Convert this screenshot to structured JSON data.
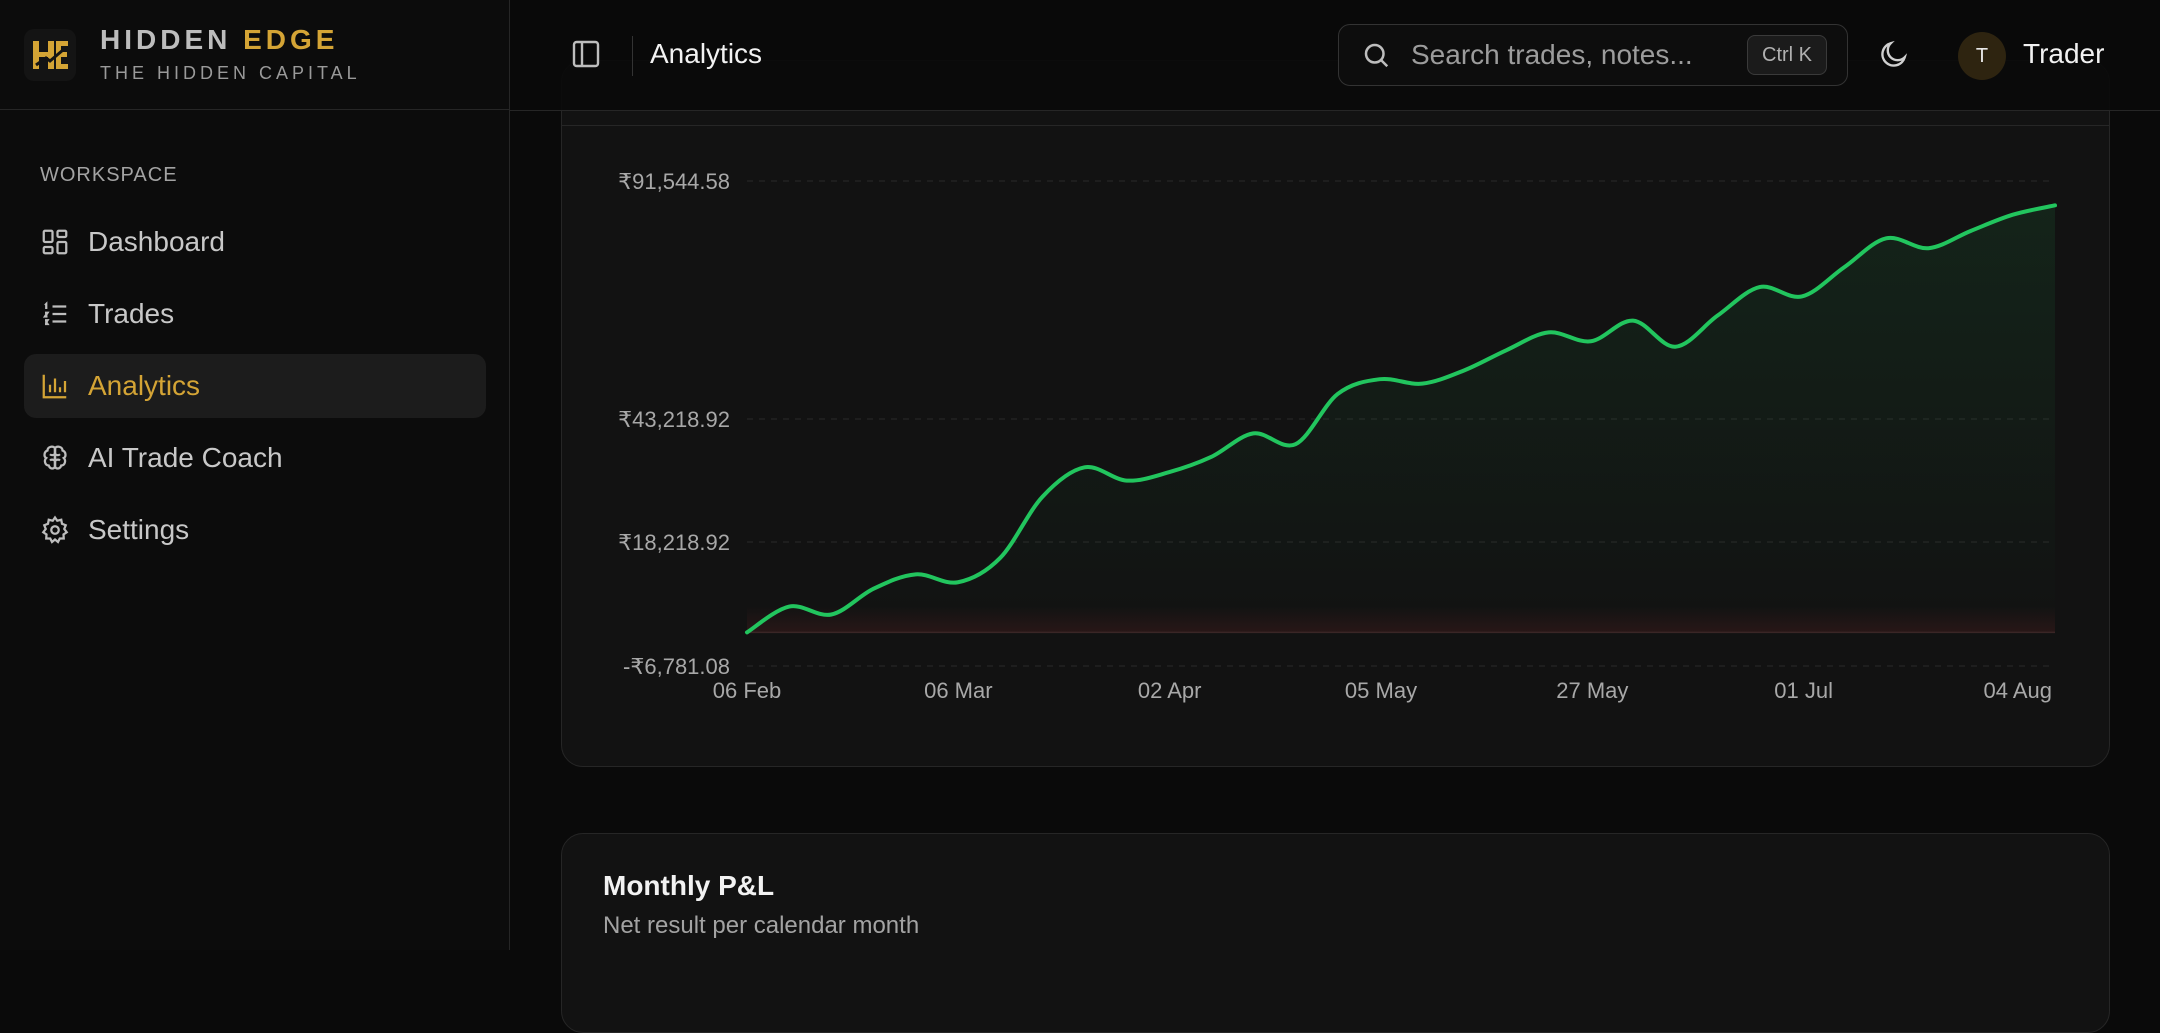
{
  "brand": {
    "name_part1": "HIDDEN",
    "name_part2": "EDGE",
    "tagline": "THE HIDDEN CAPITAL",
    "accent_color": "#d4a435"
  },
  "sidebar": {
    "section_label": "WORKSPACE",
    "items": [
      {
        "label": "Dashboard",
        "icon": "grid-icon",
        "active": false
      },
      {
        "label": "Trades",
        "icon": "list-icon",
        "active": false
      },
      {
        "label": "Analytics",
        "icon": "bar-chart-icon",
        "active": true
      },
      {
        "label": "AI Trade Coach",
        "icon": "brain-icon",
        "active": false
      },
      {
        "label": "Settings",
        "icon": "gear-icon",
        "active": false
      }
    ]
  },
  "header": {
    "title": "Analytics",
    "search_placeholder": "Search trades, notes...",
    "shortcut": "Ctrl K",
    "user_initial": "T",
    "user_name": "Trader"
  },
  "equity_card": {
    "chart_data": {
      "type": "area",
      "line_color": "#22c55e",
      "y_ticks": [
        "₹91,544.58",
        "₹43,218.92",
        "₹18,218.92",
        "-₹6,781.08"
      ],
      "y_tick_values": [
        91544.58,
        43218.92,
        18218.92,
        -6781.08
      ],
      "x_ticks": [
        "06 Feb",
        "06 Mar",
        "02 Apr",
        "05 May",
        "27 May",
        "01 Jul",
        "04 Aug"
      ],
      "grid": true,
      "series": [
        {
          "points": [
            [
              "06 Feb",
              0
            ],
            [
              "12 Feb",
              5200
            ],
            [
              "20 Feb",
              3600
            ],
            [
              "27 Feb",
              8800
            ],
            [
              "06 Mar",
              11700
            ],
            [
              "14 Mar",
              10100
            ],
            [
              "20 Mar",
              15000
            ],
            [
              "26 Mar",
              27400
            ],
            [
              "02 Apr",
              33400
            ],
            [
              "09 Apr",
              30700
            ],
            [
              "16 Apr",
              32400
            ],
            [
              "23 Apr",
              35500
            ],
            [
              "30 Apr",
              40300
            ],
            [
              "05 May",
              38100
            ],
            [
              "10 May",
              48300
            ],
            [
              "16 May",
              51300
            ],
            [
              "20 May",
              50400
            ],
            [
              "24 May",
              53100
            ],
            [
              "27 May",
              57200
            ],
            [
              "02 Jun",
              60800
            ],
            [
              "08 Jun",
              59000
            ],
            [
              "14 Jun",
              63200
            ],
            [
              "20 Jun",
              57900
            ],
            [
              "26 Jun",
              64200
            ],
            [
              "01 Jul",
              70000
            ],
            [
              "06 Jul",
              68100
            ],
            [
              "12 Jul",
              74000
            ],
            [
              "18 Jul",
              79900
            ],
            [
              "24 Jul",
              77900
            ],
            [
              "30 Jul",
              81400
            ],
            [
              "04 Aug",
              84700
            ],
            [
              "08 Aug",
              86600
            ]
          ]
        }
      ]
    }
  },
  "monthly_card": {
    "title": "Monthly P&L",
    "subtitle": "Net result per calendar month"
  }
}
